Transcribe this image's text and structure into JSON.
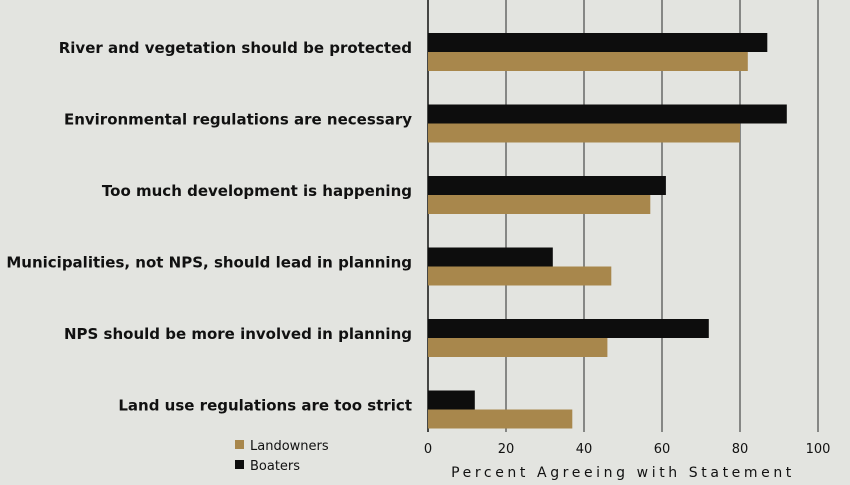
{
  "chart_data": {
    "type": "bar",
    "orientation": "horizontal",
    "categories": [
      "River and vegetation should be protected",
      "Environmental regulations are necessary",
      "Too much development is happening",
      "Municipalities, not NPS, should lead in planning",
      "NPS should be more involved in planning",
      "Land use regulations are too strict"
    ],
    "series": [
      {
        "name": "Boaters",
        "color": "#0d0d0d",
        "values": [
          87,
          92,
          61,
          32,
          72,
          12
        ]
      },
      {
        "name": "Landowners",
        "color": "#a8874c",
        "values": [
          82,
          80,
          57,
          47,
          46,
          37
        ]
      }
    ],
    "xlabel": "Percent Agreeing with Statement",
    "xlim": [
      0,
      100
    ],
    "xticks": [
      0,
      20,
      40,
      60,
      80,
      100
    ],
    "grid": "vertical lines at ticks",
    "legend": {
      "placement": "bottom-left",
      "entries": [
        "Landowners",
        "Boaters"
      ]
    }
  }
}
